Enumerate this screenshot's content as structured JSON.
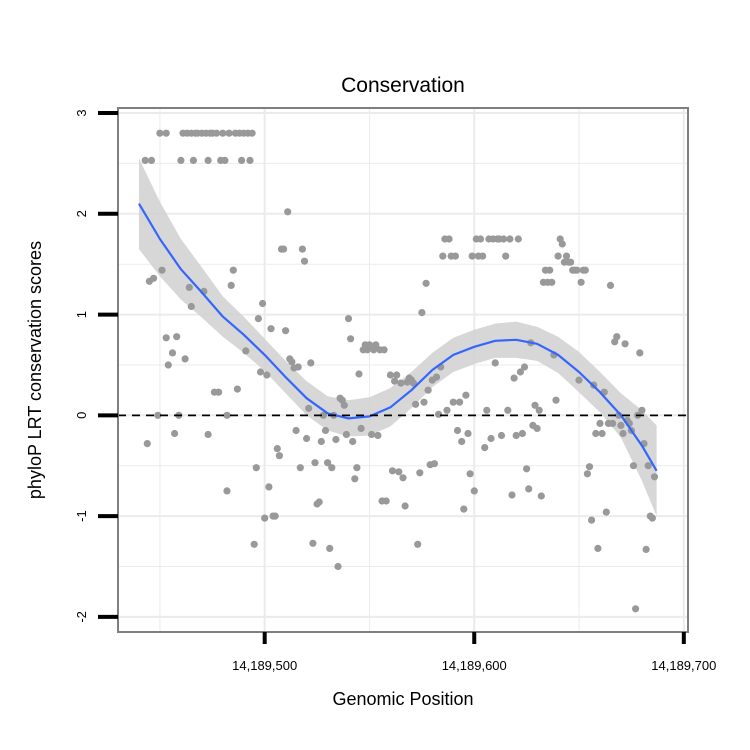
{
  "chart_data": {
    "type": "scatter",
    "title": "Conservation",
    "xlabel": "Genomic Position",
    "ylabel": "phyloP LRT conservation scores",
    "xlim": [
      14189430,
      14189702
    ],
    "ylim": [
      -2.15,
      3.05
    ],
    "x_ticks": [
      14189500,
      14189600,
      14189700
    ],
    "x_tick_labels": [
      "14,189,500",
      "14,189,600",
      "14,189,700"
    ],
    "y_ticks": [
      -2,
      -1,
      0,
      1,
      2,
      3
    ],
    "y_tick_labels": [
      "-2",
      "-1",
      "0",
      "1",
      "2",
      "3"
    ],
    "grid": true,
    "reference_line": {
      "y": 0,
      "style": "dashed"
    },
    "colors": {
      "points": "#999999",
      "smooth": "#3366ff",
      "band": "#d0d0d0",
      "frame": "#7f7f7f",
      "grid": "#ebebeb"
    },
    "points": [
      [
        14189443,
        2.53
      ],
      [
        14189446,
        2.53
      ],
      [
        14189444,
        -0.28
      ],
      [
        14189445,
        1.33
      ],
      [
        14189447,
        1.36
      ],
      [
        14189449,
        0
      ],
      [
        14189450,
        2.8
      ],
      [
        14189451,
        1.44
      ],
      [
        14189453,
        2.8
      ],
      [
        14189453,
        0.77
      ],
      [
        14189454,
        0.5
      ],
      [
        14189456,
        0.62
      ],
      [
        14189457,
        -0.18
      ],
      [
        14189458,
        0.78
      ],
      [
        14189459,
        0
      ],
      [
        14189460,
        2.53
      ],
      [
        14189461,
        2.8
      ],
      [
        14189462,
        0.56
      ],
      [
        14189463,
        2.8
      ],
      [
        14189464,
        1.27
      ],
      [
        14189465,
        2.8
      ],
      [
        14189465,
        1.08
      ],
      [
        14189466,
        2.53
      ],
      [
        14189467,
        2.8
      ],
      [
        14189468,
        2.8
      ],
      [
        14189470,
        2.8
      ],
      [
        14189471,
        1.23
      ],
      [
        14189472,
        2.8
      ],
      [
        14189473,
        -0.19
      ],
      [
        14189473,
        2.53
      ],
      [
        14189474,
        2.8
      ],
      [
        14189475,
        2.8
      ],
      [
        14189476,
        0.23
      ],
      [
        14189477,
        2.8
      ],
      [
        14189478,
        0.23
      ],
      [
        14189479,
        2.53
      ],
      [
        14189480,
        2.8
      ],
      [
        14189481,
        2.53
      ],
      [
        14189482,
        -0.75
      ],
      [
        14189482,
        0
      ],
      [
        14189483,
        2.8
      ],
      [
        14189484,
        1.29
      ],
      [
        14189485,
        1.44
      ],
      [
        14189486,
        2.8
      ],
      [
        14189487,
        0.26
      ],
      [
        14189488,
        2.8
      ],
      [
        14189489,
        2.53
      ],
      [
        14189490,
        2.8
      ],
      [
        14189491,
        0.64
      ],
      [
        14189492,
        2.8
      ],
      [
        14189493,
        2.53
      ],
      [
        14189494,
        2.8
      ],
      [
        14189495,
        -1.28
      ],
      [
        14189496,
        -0.52
      ],
      [
        14189497,
        0.96
      ],
      [
        14189498,
        0.43
      ],
      [
        14189499,
        1.11
      ],
      [
        14189500,
        -1.02
      ],
      [
        14189501,
        0.4
      ],
      [
        14189502,
        -0.71
      ],
      [
        14189503,
        0.86
      ],
      [
        14189504,
        -1.0
      ],
      [
        14189505,
        -1.0
      ],
      [
        14189506,
        -0.33
      ],
      [
        14189507,
        -0.4
      ],
      [
        14189508,
        1.65
      ],
      [
        14189509,
        1.65
      ],
      [
        14189510,
        0.84
      ],
      [
        14189511,
        2.02
      ],
      [
        14189512,
        0.56
      ],
      [
        14189513,
        0.53
      ],
      [
        14189514,
        0.47
      ],
      [
        14189515,
        -0.15
      ],
      [
        14189516,
        0.48
      ],
      [
        14189517,
        -0.52
      ],
      [
        14189518,
        1.65
      ],
      [
        14189519,
        1.53
      ],
      [
        14189520,
        -0.23
      ],
      [
        14189521,
        0.07
      ],
      [
        14189522,
        0.52
      ],
      [
        14189523,
        -1.27
      ],
      [
        14189524,
        -0.47
      ],
      [
        14189525,
        -0.88
      ],
      [
        14189526,
        -0.86
      ],
      [
        14189527,
        -0.26
      ],
      [
        14189528,
        0
      ],
      [
        14189529,
        -0.15
      ],
      [
        14189530,
        -0.47
      ],
      [
        14189531,
        -1.32
      ],
      [
        14189532,
        -0.52
      ],
      [
        14189533,
        0
      ],
      [
        14189534,
        -0.24
      ],
      [
        14189535,
        -1.5
      ],
      [
        14189536,
        0.17
      ],
      [
        14189537,
        0.15
      ],
      [
        14189538,
        0.1
      ],
      [
        14189539,
        -0.19
      ],
      [
        14189540,
        0.96
      ],
      [
        14189541,
        0.76
      ],
      [
        14189542,
        -0.26
      ],
      [
        14189543,
        -0.63
      ],
      [
        14189544,
        -0.52
      ],
      [
        14189545,
        0.41
      ],
      [
        14189546,
        -0.13
      ],
      [
        14189547,
        0.65
      ],
      [
        14189548,
        0.7
      ],
      [
        14189549,
        0.65
      ],
      [
        14189550,
        0.7
      ],
      [
        14189551,
        -0.19
      ],
      [
        14189552,
        0.65
      ],
      [
        14189553,
        0.7
      ],
      [
        14189554,
        -0.2
      ],
      [
        14189555,
        0.65
      ],
      [
        14189556,
        -0.85
      ],
      [
        14189557,
        0.65
      ],
      [
        14189558,
        -0.85
      ],
      [
        14189560,
        0.4
      ],
      [
        14189561,
        -0.55
      ],
      [
        14189562,
        0.34
      ],
      [
        14189563,
        0.4
      ],
      [
        14189564,
        -0.56
      ],
      [
        14189565,
        0.32
      ],
      [
        14189566,
        -0.62
      ],
      [
        14189567,
        -0.9
      ],
      [
        14189568,
        0.33
      ],
      [
        14189569,
        0.37
      ],
      [
        14189570,
        0.35
      ],
      [
        14189571,
        0.32
      ],
      [
        14189572,
        0.11
      ],
      [
        14189573,
        -1.28
      ],
      [
        14189574,
        -0.57
      ],
      [
        14189575,
        1.02
      ],
      [
        14189576,
        0.13
      ],
      [
        14189577,
        1.31
      ],
      [
        14189578,
        0.25
      ],
      [
        14189579,
        -0.49
      ],
      [
        14189580,
        0.35
      ],
      [
        14189581,
        -0.48
      ],
      [
        14189582,
        0.38
      ],
      [
        14189583,
        0.01
      ],
      [
        14189584,
        0.48
      ],
      [
        14189585,
        1.58
      ],
      [
        14189586,
        1.75
      ],
      [
        14189587,
        0.05
      ],
      [
        14189588,
        1.75
      ],
      [
        14189589,
        1.58
      ],
      [
        14189590,
        0.13
      ],
      [
        14189591,
        1.58
      ],
      [
        14189592,
        -0.15
      ],
      [
        14189593,
        0.13
      ],
      [
        14189594,
        -0.26
      ],
      [
        14189595,
        -0.93
      ],
      [
        14189596,
        0.2
      ],
      [
        14189597,
        -0.18
      ],
      [
        14189598,
        -0.58
      ],
      [
        14189599,
        1.58
      ],
      [
        14189600,
        -0.75
      ],
      [
        14189601,
        1.75
      ],
      [
        14189602,
        1.58
      ],
      [
        14189603,
        1.75
      ],
      [
        14189604,
        1.58
      ],
      [
        14189605,
        -0.32
      ],
      [
        14189606,
        0.05
      ],
      [
        14189607,
        1.75
      ],
      [
        14189608,
        -0.23
      ],
      [
        14189609,
        1.75
      ],
      [
        14189610,
        0.52
      ],
      [
        14189611,
        1.75
      ],
      [
        14189612,
        1.75
      ],
      [
        14189613,
        -0.2
      ],
      [
        14189614,
        1.75
      ],
      [
        14189615,
        1.58
      ],
      [
        14189616,
        0.05
      ],
      [
        14189617,
        1.75
      ],
      [
        14189618,
        -0.79
      ],
      [
        14189619,
        0.37
      ],
      [
        14189620,
        -0.2
      ],
      [
        14189621,
        1.75
      ],
      [
        14189622,
        0.43
      ],
      [
        14189623,
        -0.18
      ],
      [
        14189624,
        0.48
      ],
      [
        14189625,
        -0.53
      ],
      [
        14189626,
        -0.73
      ],
      [
        14189627,
        0.72
      ],
      [
        14189628,
        -0.1
      ],
      [
        14189629,
        0.1
      ],
      [
        14189630,
        -0.13
      ],
      [
        14189631,
        0.05
      ],
      [
        14189632,
        -0.8
      ],
      [
        14189633,
        1.32
      ],
      [
        14189634,
        1.44
      ],
      [
        14189635,
        1.32
      ],
      [
        14189636,
        1.44
      ],
      [
        14189637,
        1.32
      ],
      [
        14189638,
        0.6
      ],
      [
        14189639,
        0.15
      ],
      [
        14189640,
        1.58
      ],
      [
        14189641,
        1.75
      ],
      [
        14189642,
        1.7
      ],
      [
        14189643,
        1.52
      ],
      [
        14189644,
        1.58
      ],
      [
        14189645,
        1.52
      ],
      [
        14189646,
        1.52
      ],
      [
        14189647,
        1.44
      ],
      [
        14189648,
        1.44
      ],
      [
        14189649,
        1.44
      ],
      [
        14189650,
        0.35
      ],
      [
        14189651,
        1.32
      ],
      [
        14189652,
        1.44
      ],
      [
        14189653,
        1.44
      ],
      [
        14189654,
        -0.58
      ],
      [
        14189655,
        -0.51
      ],
      [
        14189656,
        -1.04
      ],
      [
        14189657,
        0.3
      ],
      [
        14189658,
        -0.18
      ],
      [
        14189659,
        -1.32
      ],
      [
        14189660,
        -0.08
      ],
      [
        14189661,
        -0.18
      ],
      [
        14189662,
        0.23
      ],
      [
        14189663,
        -0.96
      ],
      [
        14189664,
        -0.08
      ],
      [
        14189665,
        1.29
      ],
      [
        14189666,
        -0.08
      ],
      [
        14189667,
        0.73
      ],
      [
        14189668,
        0.78
      ],
      [
        14189669,
        0
      ],
      [
        14189670,
        -0.1
      ],
      [
        14189671,
        -0.18
      ],
      [
        14189672,
        0.71
      ],
      [
        14189673,
        -0.05
      ],
      [
        14189674,
        -0.08
      ],
      [
        14189675,
        -0.15
      ],
      [
        14189676,
        -0.5
      ],
      [
        14189677,
        -1.92
      ],
      [
        14189678,
        0
      ],
      [
        14189679,
        0.62
      ],
      [
        14189680,
        0.05
      ],
      [
        14189681,
        -0.28
      ],
      [
        14189682,
        -1.33
      ],
      [
        14189683,
        -0.5
      ],
      [
        14189684,
        -1.0
      ],
      [
        14189685,
        -1.02
      ],
      [
        14189686,
        -0.61
      ]
    ],
    "smooth": [
      [
        14189440,
        2.1
      ],
      [
        14189450,
        1.75
      ],
      [
        14189460,
        1.45
      ],
      [
        14189470,
        1.22
      ],
      [
        14189480,
        0.98
      ],
      [
        14189490,
        0.8
      ],
      [
        14189500,
        0.6
      ],
      [
        14189510,
        0.38
      ],
      [
        14189520,
        0.17
      ],
      [
        14189530,
        0.02
      ],
      [
        14189540,
        -0.03
      ],
      [
        14189550,
        -0.01
      ],
      [
        14189560,
        0.08
      ],
      [
        14189570,
        0.25
      ],
      [
        14189580,
        0.45
      ],
      [
        14189590,
        0.6
      ],
      [
        14189600,
        0.68
      ],
      [
        14189610,
        0.74
      ],
      [
        14189620,
        0.75
      ],
      [
        14189630,
        0.71
      ],
      [
        14189640,
        0.6
      ],
      [
        14189650,
        0.43
      ],
      [
        14189660,
        0.23
      ],
      [
        14189670,
        0.0
      ],
      [
        14189680,
        -0.3
      ],
      [
        14189687,
        -0.55
      ]
    ],
    "band_upper": [
      [
        14189440,
        2.55
      ],
      [
        14189450,
        2.12
      ],
      [
        14189460,
        1.75
      ],
      [
        14189470,
        1.47
      ],
      [
        14189480,
        1.18
      ],
      [
        14189490,
        0.98
      ],
      [
        14189500,
        0.76
      ],
      [
        14189510,
        0.54
      ],
      [
        14189520,
        0.34
      ],
      [
        14189530,
        0.19
      ],
      [
        14189540,
        0.15
      ],
      [
        14189550,
        0.18
      ],
      [
        14189560,
        0.27
      ],
      [
        14189570,
        0.43
      ],
      [
        14189580,
        0.62
      ],
      [
        14189590,
        0.77
      ],
      [
        14189600,
        0.85
      ],
      [
        14189610,
        0.91
      ],
      [
        14189620,
        0.93
      ],
      [
        14189630,
        0.88
      ],
      [
        14189640,
        0.78
      ],
      [
        14189650,
        0.63
      ],
      [
        14189660,
        0.43
      ],
      [
        14189670,
        0.22
      ],
      [
        14189680,
        0.05
      ],
      [
        14189687,
        -0.1
      ]
    ],
    "band_lower": [
      [
        14189440,
        1.65
      ],
      [
        14189450,
        1.38
      ],
      [
        14189460,
        1.15
      ],
      [
        14189470,
        0.97
      ],
      [
        14189480,
        0.78
      ],
      [
        14189490,
        0.62
      ],
      [
        14189500,
        0.44
      ],
      [
        14189510,
        0.22
      ],
      [
        14189520,
        0.0
      ],
      [
        14189530,
        -0.15
      ],
      [
        14189540,
        -0.21
      ],
      [
        14189550,
        -0.2
      ],
      [
        14189560,
        -0.11
      ],
      [
        14189570,
        0.07
      ],
      [
        14189580,
        0.28
      ],
      [
        14189590,
        0.43
      ],
      [
        14189600,
        0.51
      ],
      [
        14189610,
        0.57
      ],
      [
        14189620,
        0.57
      ],
      [
        14189630,
        0.54
      ],
      [
        14189640,
        0.42
      ],
      [
        14189650,
        0.23
      ],
      [
        14189660,
        0.03
      ],
      [
        14189670,
        -0.22
      ],
      [
        14189680,
        -0.65
      ],
      [
        14189687,
        -1.0
      ]
    ]
  }
}
